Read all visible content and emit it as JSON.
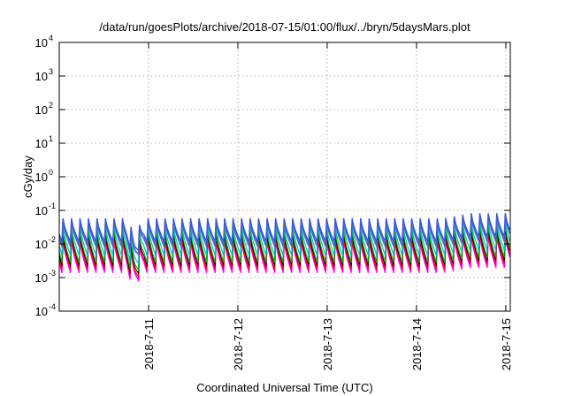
{
  "chart_data": {
    "type": "line",
    "title": "/data/run/goesPlots/archive/2018-07-15/01:00/flux/../bryn/5daysMars.plot",
    "xlabel": "Coordinated Universal Time (UTC)",
    "ylabel": "cGy/day",
    "log_y": true,
    "grid": true,
    "legend": "none",
    "xlim": [
      0,
      5.05
    ],
    "ylim_exp": [
      -4,
      4
    ],
    "xticks": [
      {
        "value": 1,
        "label": "2018-7-11"
      },
      {
        "value": 2,
        "label": "2018-7-12"
      },
      {
        "value": 3,
        "label": "2018-7-13"
      },
      {
        "value": 4,
        "label": "2018-7-14"
      },
      {
        "value": 5,
        "label": "2018-7-15"
      }
    ],
    "yticks": [
      {
        "exp": -4,
        "label": "10",
        "sup": "-4"
      },
      {
        "exp": -3,
        "label": "10",
        "sup": "-3"
      },
      {
        "exp": -2,
        "label": "10",
        "sup": "-2"
      },
      {
        "exp": -1,
        "label": "10",
        "sup": "-1"
      },
      {
        "exp": 0,
        "label": "10",
        "sup": "0"
      },
      {
        "exp": 1,
        "label": "10",
        "sup": "1"
      },
      {
        "exp": 2,
        "label": "10",
        "sup": "2"
      },
      {
        "exp": 3,
        "label": "10",
        "sup": "3"
      },
      {
        "exp": 4,
        "label": "10",
        "sup": "4"
      }
    ],
    "cycles_per_day": 10.5,
    "phase_offset": 0.03,
    "series": [
      {
        "color": "#ff00ff",
        "lowExp": -2.85,
        "highExp": -1.85,
        "lw": 1.5
      },
      {
        "color": "#ff0000",
        "lowExp": -2.75,
        "highExp": -1.8,
        "lw": 1.2
      },
      {
        "color": "#000000",
        "lowExp": -2.65,
        "highExp": -1.7,
        "lw": 1
      },
      {
        "color": "#00b000",
        "lowExp": -2.55,
        "highExp": -1.6,
        "lw": 1
      },
      {
        "color": "#00c0c0",
        "lowExp": -2.35,
        "highExp": -1.45,
        "lw": 1.2
      },
      {
        "color": "#7070a0",
        "lowExp": -2.1,
        "highExp": -1.35,
        "lw": 1
      },
      {
        "color": "#3050ff",
        "lowExp": -1.95,
        "highExp": -1.25,
        "lw": 1.5
      },
      {
        "color": "#4060c0",
        "lowExp": -2.05,
        "highExp": -1.3,
        "lw": 1
      }
    ],
    "dip": {
      "x_start": 0.75,
      "x_end": 0.95,
      "deltaExp": -0.3
    },
    "rise": {
      "x_start": 4.3,
      "x_end": 5.05,
      "deltaExp": 0.15
    }
  }
}
